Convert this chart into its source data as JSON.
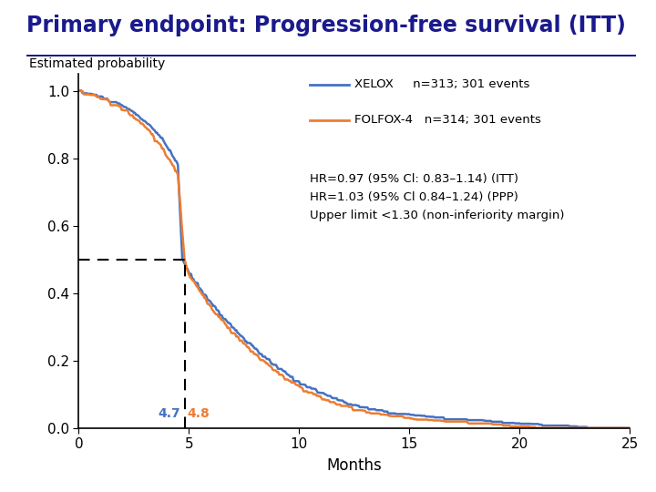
{
  "title": "Primary endpoint: Progression-free survival (ITT)",
  "title_color": "#1a1a8c",
  "title_fontsize": 17,
  "ylabel": "Estimated probability",
  "xlabel": "Months",
  "xelox_color": "#4472C4",
  "folfox_color": "#ED7D31",
  "xelox_label": "XELOX",
  "folfox_label": "FOLFOX-4",
  "xelox_n": "n=313; 301 events",
  "folfox_n": "n=314; 301 events",
  "median_xelox": 4.7,
  "median_folfox": 4.8,
  "annotation_text": "HR=0.97 (95% Cl: 0.83–1.14) (ITT)\nHR=1.03 (95% Cl 0.84–1.24) (PPP)\nUpper limit <1.30 (non-inferiority margin)",
  "xlim": [
    0,
    25
  ],
  "ylim": [
    0,
    1.05
  ],
  "xticks": [
    0,
    5,
    10,
    15,
    20,
    25
  ],
  "yticks": [
    0,
    0.2,
    0.4,
    0.6,
    0.8,
    1.0
  ],
  "background_color": "#ffffff",
  "dashed_line_color": "#000000",
  "median_line_y": 0.5,
  "xelox_t": [
    0,
    0.3,
    0.6,
    0.9,
    1.2,
    1.5,
    1.8,
    2.1,
    2.4,
    2.7,
    3.0,
    3.3,
    3.6,
    3.9,
    4.2,
    4.5,
    4.7,
    5.0,
    5.5,
    6.0,
    6.5,
    7.0,
    7.5,
    8.0,
    8.5,
    9.0,
    9.5,
    10.0,
    11.0,
    12.0,
    13.0,
    14.0,
    15.0,
    16.0,
    17.0,
    18.0,
    19.0,
    20.0,
    21.0,
    22.0,
    23.0,
    24.0,
    25.0
  ],
  "xelox_s": [
    1.0,
    0.995,
    0.99,
    0.985,
    0.978,
    0.97,
    0.962,
    0.952,
    0.94,
    0.926,
    0.91,
    0.892,
    0.87,
    0.845,
    0.815,
    0.78,
    0.5,
    0.46,
    0.415,
    0.372,
    0.333,
    0.298,
    0.265,
    0.235,
    0.207,
    0.181,
    0.158,
    0.138,
    0.104,
    0.08,
    0.062,
    0.05,
    0.042,
    0.036,
    0.031,
    0.027,
    0.022,
    0.018,
    0.014,
    0.01,
    0.007,
    0.004,
    0.002
  ],
  "folfox_t": [
    0,
    0.3,
    0.6,
    0.9,
    1.2,
    1.5,
    1.8,
    2.1,
    2.4,
    2.7,
    3.0,
    3.3,
    3.6,
    3.9,
    4.2,
    4.5,
    4.8,
    5.0,
    5.5,
    6.0,
    6.5,
    7.0,
    7.5,
    8.0,
    8.5,
    9.0,
    9.5,
    10.0,
    11.0,
    12.0,
    13.0,
    14.0,
    15.0,
    16.0,
    17.0,
    18.0,
    19.0,
    20.0,
    21.0,
    22.0,
    23.0,
    24.0,
    25.0
  ],
  "folfox_s": [
    1.0,
    0.995,
    0.989,
    0.982,
    0.974,
    0.965,
    0.955,
    0.943,
    0.929,
    0.912,
    0.893,
    0.871,
    0.846,
    0.818,
    0.786,
    0.75,
    0.5,
    0.455,
    0.405,
    0.36,
    0.32,
    0.283,
    0.25,
    0.22,
    0.192,
    0.166,
    0.143,
    0.123,
    0.09,
    0.068,
    0.051,
    0.04,
    0.032,
    0.026,
    0.021,
    0.017,
    0.013,
    0.009,
    0.006,
    0.004,
    0.002,
    0.001,
    0.0005
  ]
}
